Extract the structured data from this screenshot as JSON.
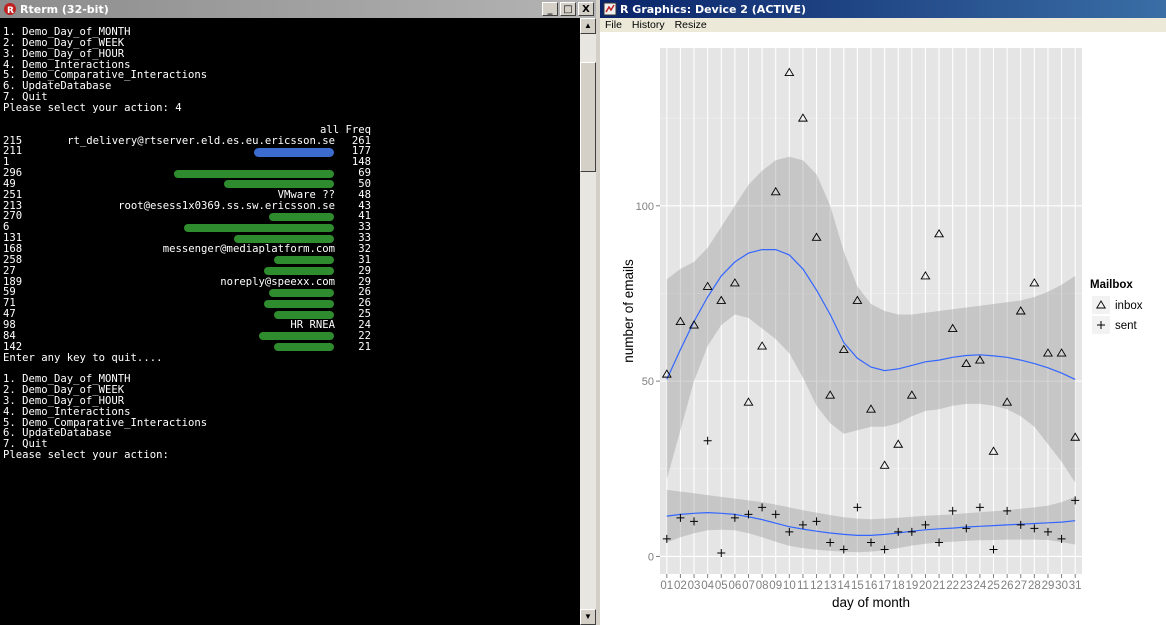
{
  "rterm": {
    "title": "Rterm (32-bit)",
    "controls": {
      "minimize": "_",
      "maximize": "□",
      "close": "X"
    },
    "menu1": [
      "1. Demo_Day_of_MONTH",
      "2. Demo_Day_of_WEEK",
      "3. Demo_Day_of_HOUR",
      "4. Demo_Interactions",
      "5. Demo_Comparative_Interactions",
      "6. UpdateDatabase",
      "7. Quit"
    ],
    "prompt1": "Please select your action: 4",
    "table_header": "all Freq",
    "rows": [
      {
        "id": "215",
        "name": "rt_delivery@rtserver.eld.es.eu.ericsson.se",
        "freq": "261",
        "redacted": "none"
      },
      {
        "id": "211",
        "name": "",
        "freq": "177",
        "redacted": "blue"
      },
      {
        "id": "1",
        "name": "",
        "freq": "148",
        "redacted": "none"
      },
      {
        "id": "296",
        "name": "",
        "freq": "69",
        "redacted": "green"
      },
      {
        "id": "49",
        "name": "",
        "freq": "50",
        "redacted": "green"
      },
      {
        "id": "251",
        "name": "VMware ??",
        "freq": "48",
        "redacted": "none"
      },
      {
        "id": "213",
        "name": "root@esess1x0369.ss.sw.ericsson.se",
        "freq": "43",
        "redacted": "none"
      },
      {
        "id": "270",
        "name": "",
        "freq": "41",
        "redacted": "green"
      },
      {
        "id": "6",
        "name": "",
        "freq": "33",
        "redacted": "green"
      },
      {
        "id": "131",
        "name": "",
        "freq": "33",
        "redacted": "green"
      },
      {
        "id": "168",
        "name": "messenger@mediaplatform.com",
        "freq": "32",
        "redacted": "none"
      },
      {
        "id": "258",
        "name": "",
        "freq": "31",
        "redacted": "green"
      },
      {
        "id": "27",
        "name": "",
        "freq": "29",
        "redacted": "green"
      },
      {
        "id": "189",
        "name": "noreply@speexx.com",
        "freq": "29",
        "redacted": "none"
      },
      {
        "id": "59",
        "name": "",
        "freq": "26",
        "redacted": "green"
      },
      {
        "id": "71",
        "name": "",
        "freq": "26",
        "redacted": "green"
      },
      {
        "id": "47",
        "name": "",
        "freq": "25",
        "redacted": "green"
      },
      {
        "id": "98",
        "name": "HR RNEA",
        "freq": "24",
        "redacted": "none"
      },
      {
        "id": "84",
        "name": "",
        "freq": "22",
        "redacted": "green"
      },
      {
        "id": "142",
        "name": "",
        "freq": "21",
        "redacted": "green"
      }
    ],
    "quit_prompt": "Enter any key to quit....",
    "menu2": [
      "1. Demo_Day_of_MONTH",
      "2. Demo_Day_of_WEEK",
      "3. Demo_Day_of_HOUR",
      "4. Demo_Interactions",
      "5. Demo_Comparative_Interactions",
      "6. UpdateDatabase",
      "7. Quit"
    ],
    "prompt2": "Please select your action:"
  },
  "rgraph": {
    "title": "R Graphics: Device 2 (ACTIVE)",
    "menu": [
      "File",
      "History",
      "Resize"
    ]
  },
  "chart_data": {
    "type": "scatter",
    "title": "",
    "xlabel": "day of month",
    "ylabel": "number of emails",
    "categories": [
      "01",
      "02",
      "03",
      "04",
      "05",
      "06",
      "07",
      "08",
      "09",
      "10",
      "11",
      "12",
      "13",
      "14",
      "15",
      "16",
      "17",
      "18",
      "19",
      "20",
      "21",
      "22",
      "23",
      "24",
      "25",
      "26",
      "27",
      "28",
      "29",
      "30",
      "31"
    ],
    "yticks": [
      0,
      50,
      100
    ],
    "ylim": [
      -5,
      145
    ],
    "grid": true,
    "background": "#e5e5e5",
    "smooth_color": "#3366ff",
    "legend": {
      "title": "Mailbox",
      "placement": "right",
      "entries": [
        {
          "label": "inbox",
          "shape": "triangle"
        },
        {
          "label": "sent",
          "shape": "plus"
        }
      ]
    },
    "series": [
      {
        "name": "inbox",
        "shape": "triangle",
        "values": [
          52,
          67,
          66,
          77,
          73,
          78,
          44,
          60,
          104,
          138,
          125,
          91,
          46,
          59,
          73,
          42,
          26,
          32,
          46,
          80,
          92,
          65,
          55,
          56,
          30,
          44,
          70,
          78,
          58,
          58,
          34
        ],
        "smooth": [
          50.5,
          59,
          67,
          74,
          80,
          84,
          86.5,
          87.5,
          87.5,
          86,
          82,
          76,
          69,
          61,
          56.5,
          54,
          53,
          53.5,
          54.5,
          55.5,
          56,
          56.8,
          57.3,
          57.5,
          57.2,
          56.8,
          56,
          55,
          53.8,
          52.3,
          50.5
        ],
        "band_upper": [
          79,
          82,
          84,
          88,
          94,
          100,
          106,
          110,
          113,
          114,
          113,
          109,
          100,
          87,
          77,
          72,
          70,
          69,
          69,
          69.5,
          70,
          70.5,
          71,
          71.5,
          72,
          72.5,
          73,
          74,
          75.5,
          77.5,
          80
        ],
        "band_lower": [
          22,
          36,
          50,
          60,
          66,
          69,
          68,
          65,
          62,
          58,
          51,
          43,
          38,
          35,
          36,
          37,
          37,
          38,
          40,
          41.5,
          42,
          43,
          43.5,
          43.5,
          43,
          42,
          40,
          37,
          32,
          27,
          21
        ]
      },
      {
        "name": "sent",
        "shape": "plus",
        "values": [
          5,
          11,
          10,
          33,
          1,
          11,
          12,
          14,
          12,
          7,
          9,
          10,
          4,
          2,
          14,
          4,
          2,
          7,
          7,
          9,
          4,
          13,
          8,
          14,
          2,
          13,
          9,
          8,
          7,
          5,
          16
        ],
        "smooth": [
          11.5,
          12,
          12.3,
          12.5,
          12.3,
          12,
          11.3,
          10.5,
          9.5,
          8.5,
          7.8,
          7.2,
          6.7,
          6.3,
          6,
          6,
          6.3,
          6.7,
          7.2,
          7.6,
          7.9,
          8.1,
          8.4,
          8.6,
          8.8,
          9,
          9.2,
          9.4,
          9.6,
          9.8,
          10.2
        ],
        "band_upper": [
          19,
          18.5,
          18,
          17.5,
          17,
          16.5,
          16,
          15.5,
          14.8,
          14,
          13.2,
          12.5,
          11.8,
          11.2,
          10.8,
          10.6,
          10.8,
          11,
          11.3,
          11.6,
          11.8,
          12,
          12.3,
          12.6,
          12.9,
          13.2,
          13.6,
          14,
          14.5,
          15.5,
          17
        ]
      }
    ]
  }
}
